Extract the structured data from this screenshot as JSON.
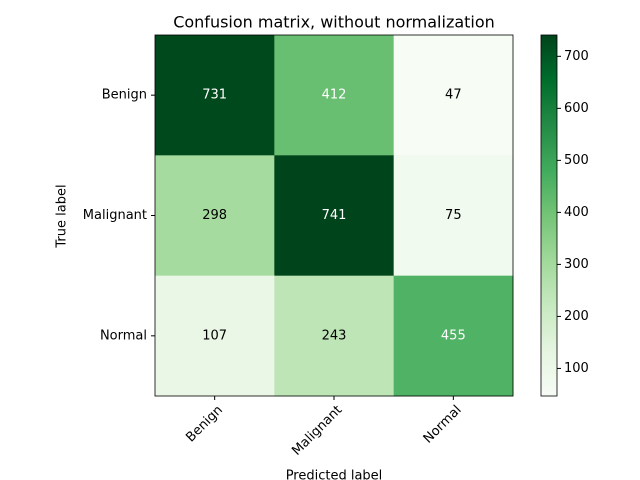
{
  "chart_data": {
    "type": "heatmap",
    "title": "Confusion matrix, without normalization",
    "x_label": "Predicted label",
    "y_label": "True label",
    "x_categories": [
      "Benign",
      "Malignant",
      "Normal"
    ],
    "y_categories": [
      "Benign",
      "Malignant",
      "Normal"
    ],
    "values": [
      [
        731,
        412,
        47
      ],
      [
        298,
        741,
        75
      ],
      [
        107,
        243,
        455
      ]
    ],
    "colormap": [
      "#f7fcf5",
      "#e5f5e0",
      "#c7e9c0",
      "#a1d99b",
      "#74c476",
      "#41ab5d",
      "#238b45",
      "#006d2c",
      "#00441b"
    ],
    "clim": [
      47,
      741
    ],
    "colorbar_ticks": [
      100,
      200,
      300,
      400,
      500,
      600,
      700
    ]
  }
}
